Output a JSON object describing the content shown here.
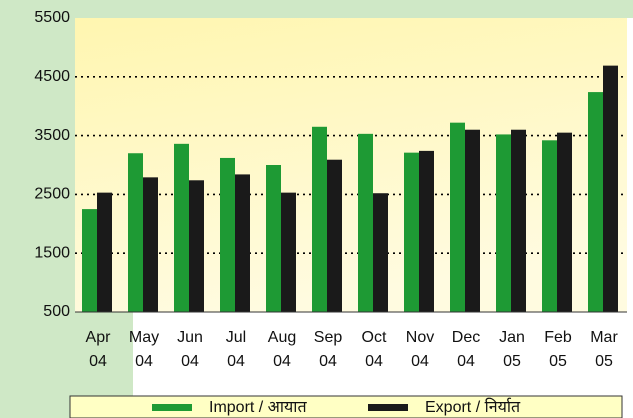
{
  "chart_data": {
    "type": "bar",
    "categories": [
      "Apr 04",
      "May 04",
      "Jun 04",
      "Jul 04",
      "Aug 04",
      "Sep 04",
      "Oct 04",
      "Nov 04",
      "Dec 04",
      "Jan 05",
      "Feb 05",
      "Mar 05"
    ],
    "series": [
      {
        "name": "Import / आयात",
        "color": "#1e9a34",
        "values": [
          2250,
          3200,
          3360,
          3120,
          3000,
          3650,
          3530,
          3210,
          3720,
          3520,
          3420,
          4240
        ]
      },
      {
        "name": "Export / निर्यात",
        "color": "#1a1a1a",
        "values": [
          2530,
          2790,
          2740,
          2840,
          2530,
          3090,
          2520,
          3240,
          3600,
          3600,
          3550,
          4690
        ]
      }
    ],
    "ylim": [
      500,
      5500
    ],
    "yticks": [
      500,
      1500,
      2500,
      3500,
      4500,
      5500
    ],
    "grid": true
  }
}
